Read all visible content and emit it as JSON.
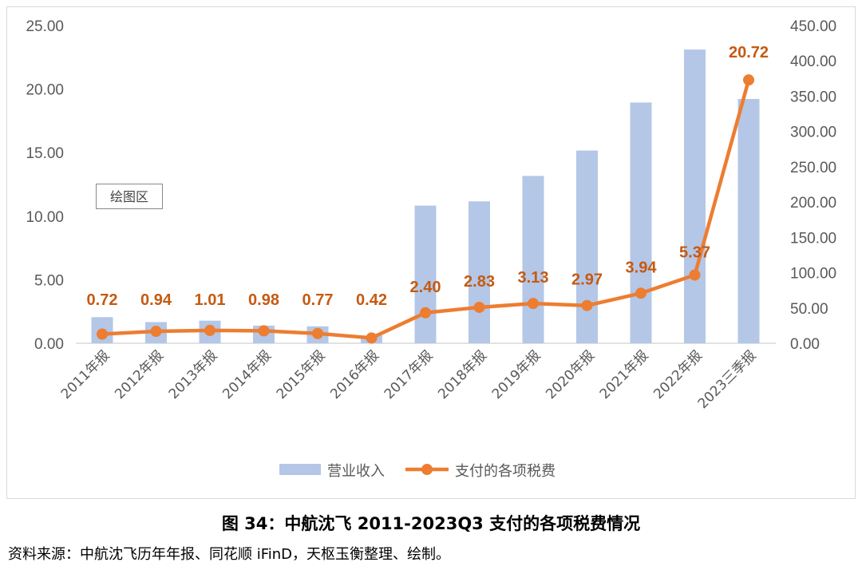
{
  "chart_data": {
    "type": "bar+line",
    "categories": [
      "2011年报",
      "2012年报",
      "2013年报",
      "2014年报",
      "2015年报",
      "2016年报",
      "2017年报",
      "2018年报",
      "2019年报",
      "2020年报",
      "2021年报",
      "2022年报",
      "2023三季报"
    ],
    "series": [
      {
        "name": "营业收入",
        "type": "bar",
        "axis": "right",
        "color": "#b4c7e7",
        "values": [
          37,
          30,
          32,
          25,
          24,
          11,
          195,
          201,
          237,
          273,
          341,
          416,
          346
        ]
      },
      {
        "name": "支付的各项税费",
        "type": "line",
        "axis": "left",
        "color": "#ed7d31",
        "label_color": "#c55a11",
        "values": [
          0.72,
          0.94,
          1.01,
          0.98,
          0.77,
          0.42,
          2.4,
          2.83,
          3.13,
          2.97,
          3.94,
          5.37,
          20.72
        ],
        "labels": [
          "0.72",
          "0.94",
          "1.01",
          "0.98",
          "0.77",
          "0.42",
          "2.40",
          "2.83",
          "3.13",
          "2.97",
          "3.94",
          "5.37",
          "20.72"
        ]
      }
    ],
    "left_axis": {
      "range": [
        0,
        25
      ],
      "ticks": [
        "0.00",
        "5.00",
        "10.00",
        "15.00",
        "20.00",
        "25.00"
      ]
    },
    "right_axis": {
      "range": [
        0,
        450
      ],
      "ticks": [
        "0.00",
        "50.00",
        "100.00",
        "150.00",
        "200.00",
        "250.00",
        "300.00",
        "350.00",
        "400.00",
        "450.00"
      ]
    },
    "legend_position": "bottom",
    "tooltip": "绘图区"
  },
  "caption": "图  34：中航沈飞 2011-2023Q3 支付的各项税费情况",
  "source": "资料来源：中航沈飞历年年报、同花顺 iFinD，天枢玉衡整理、绘制。"
}
